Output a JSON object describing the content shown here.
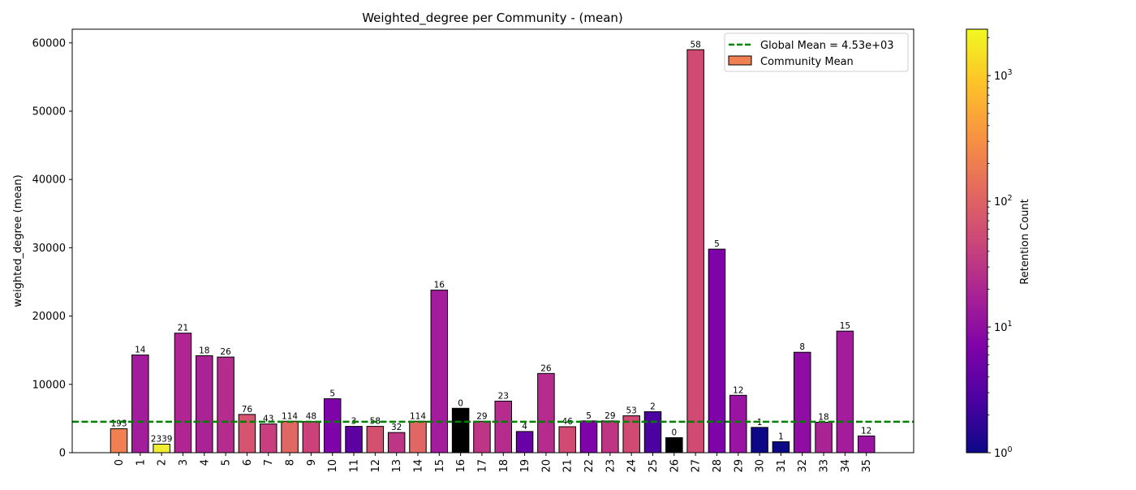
{
  "chart_data": {
    "type": "bar",
    "title": "Weighted_degree per Community - (mean)",
    "xlabel": "",
    "ylabel": "weighted_degree (mean)",
    "ylim": [
      0,
      62000
    ],
    "yticks": [
      0,
      10000,
      20000,
      30000,
      40000,
      50000,
      60000
    ],
    "categories": [
      "0",
      "1",
      "2",
      "3",
      "4",
      "5",
      "6",
      "7",
      "8",
      "9",
      "10",
      "11",
      "12",
      "13",
      "14",
      "15",
      "16",
      "17",
      "18",
      "19",
      "20",
      "21",
      "22",
      "23",
      "24",
      "25",
      "26",
      "27",
      "28",
      "29",
      "30",
      "31",
      "32",
      "33",
      "34",
      "35"
    ],
    "values": [
      3500,
      14300,
      1250,
      17500,
      14200,
      14000,
      5600,
      4200,
      4600,
      4550,
      7900,
      3850,
      3850,
      2950,
      4600,
      23800,
      6500,
      4600,
      7550,
      3100,
      11600,
      3800,
      4650,
      4650,
      5400,
      6000,
      2200,
      59000,
      29800,
      8400,
      3700,
      1600,
      14700,
      4450,
      17800,
      2450
    ],
    "counts": [
      "193",
      "14",
      "2339",
      "21",
      "18",
      "26",
      "76",
      "43",
      "114",
      "48",
      "5",
      "3",
      "58",
      "32",
      "114",
      "16",
      "0",
      "29",
      "23",
      "4",
      "26",
      "46",
      "5",
      "29",
      "53",
      "2",
      "0",
      "58",
      "5",
      "12",
      "1",
      "1",
      "8",
      "18",
      "15",
      "12"
    ],
    "colors": [
      "#f0804f",
      "#a21c9b",
      "#f0ee34",
      "#b02592",
      "#aa2395",
      "#b52b8e",
      "#d65470",
      "#c83e7f",
      "#e06763",
      "#cb4179",
      "#7e03a8",
      "#5c02a3",
      "#d4506f",
      "#bf3586",
      "#e06763",
      "#a21c9b",
      "#000000",
      "#bf3586",
      "#b52b8e",
      "#6a00a8",
      "#b52b8e",
      "#d04a73",
      "#7e03a8",
      "#bf3586",
      "#d04a73",
      "#4c02a1",
      "#000000",
      "#d04a73",
      "#7e03a8",
      "#9914a0",
      "#0d0887",
      "#0d0887",
      "#8f0da4",
      "#aa2395",
      "#a21c9b",
      "#9914a0"
    ],
    "global_mean": 4530,
    "legend": {
      "placement": "top-right",
      "global_mean_label": "Global Mean = 4.53e+03",
      "global_mean_color": "#008000",
      "bar_label": "Community Mean",
      "bar_color": "#f0804f"
    },
    "colorbar": {
      "label": "Retention Count",
      "scale": "log",
      "ticks": [
        {
          "value": 1,
          "base": "10",
          "exp": "0"
        },
        {
          "value": 10,
          "base": "10",
          "exp": "1"
        },
        {
          "value": 100,
          "base": "10",
          "exp": "2"
        },
        {
          "value": 1000,
          "base": "10",
          "exp": "3"
        }
      ],
      "range": [
        1,
        2339
      ],
      "colormap": "plasma"
    }
  }
}
